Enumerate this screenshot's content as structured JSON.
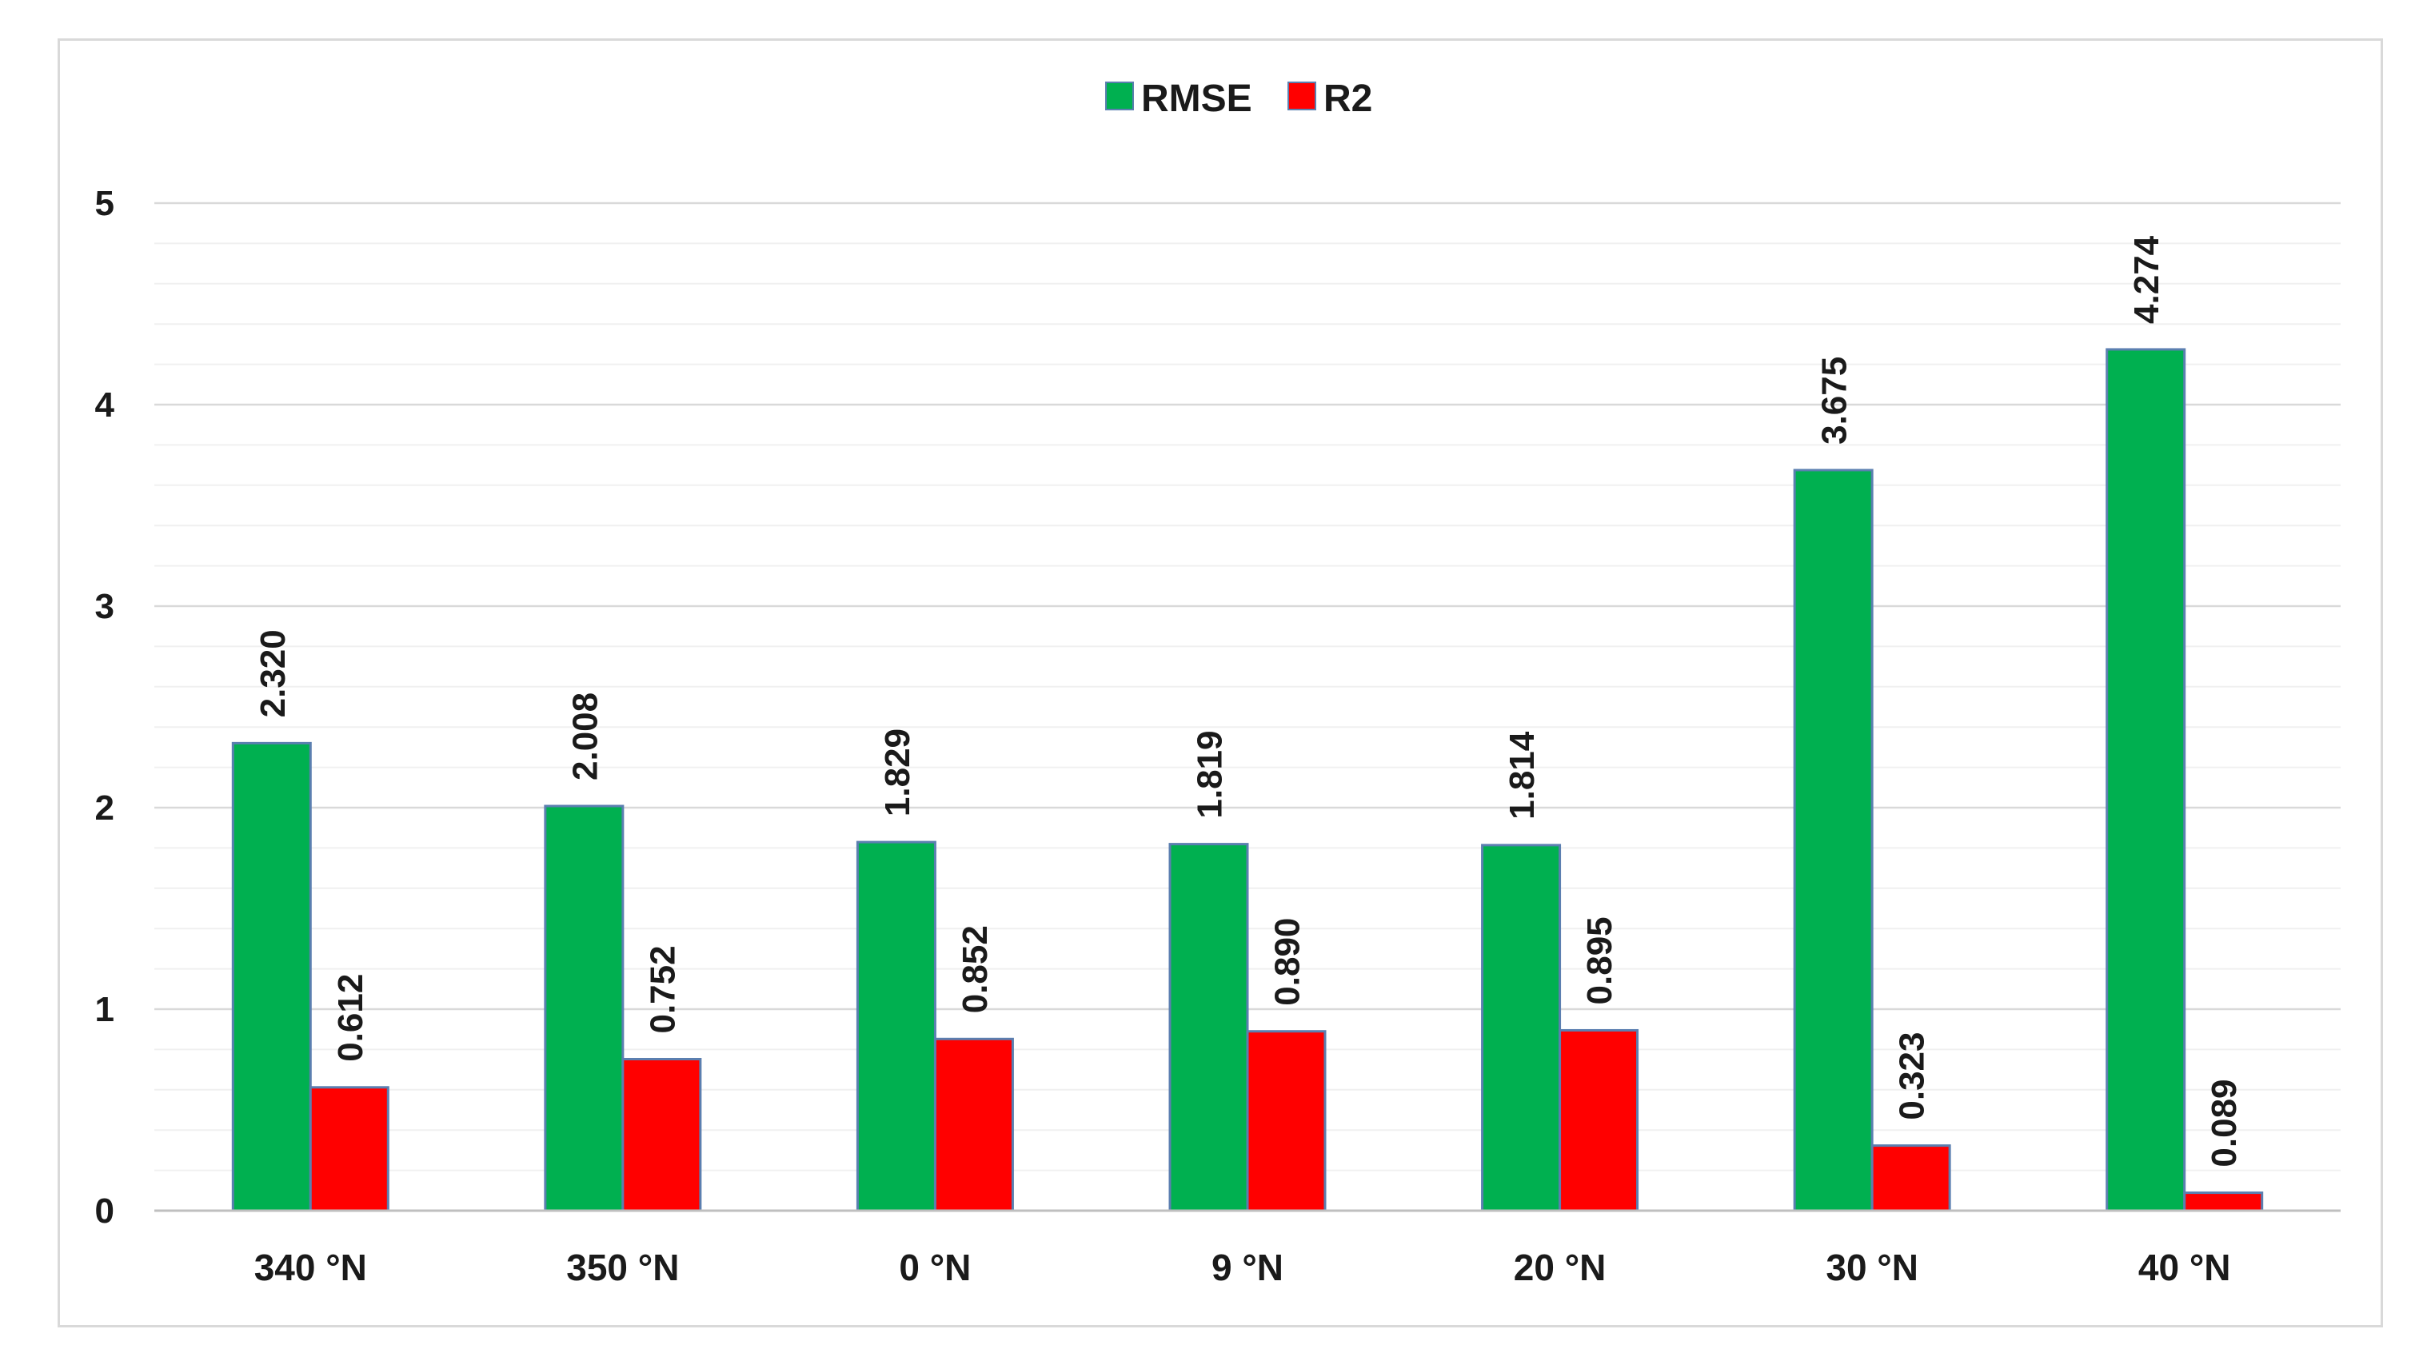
{
  "chart_data": {
    "type": "bar",
    "categories": [
      "340 °N",
      "350  °N",
      "0  °N",
      "9  °N",
      "20  °N",
      "30  °N",
      "40  °N"
    ],
    "series": [
      {
        "name": "RMSE",
        "color": "#00b050",
        "values": [
          2.32,
          2.008,
          1.829,
          1.819,
          1.814,
          3.675,
          4.274
        ],
        "labels": [
          "2.320",
          "2.008",
          "1.829",
          "1.819",
          "1.814",
          "3.675",
          "4.274"
        ]
      },
      {
        "name": "R2",
        "color": "#ff0000",
        "values": [
          0.612,
          0.752,
          0.852,
          0.89,
          0.895,
          0.323,
          0.089
        ],
        "labels": [
          "0.612",
          "0.752",
          "0.852",
          "0.890",
          "0.895",
          "0.323",
          "0.089"
        ]
      }
    ],
    "yticks": [
      "0",
      "1",
      "2",
      "3",
      "4",
      "5"
    ],
    "ylim": [
      0,
      5
    ],
    "minor_grid_step": 0.2,
    "grid": true,
    "legend": "top-center",
    "title": "",
    "xlabel": "",
    "ylabel": ""
  }
}
